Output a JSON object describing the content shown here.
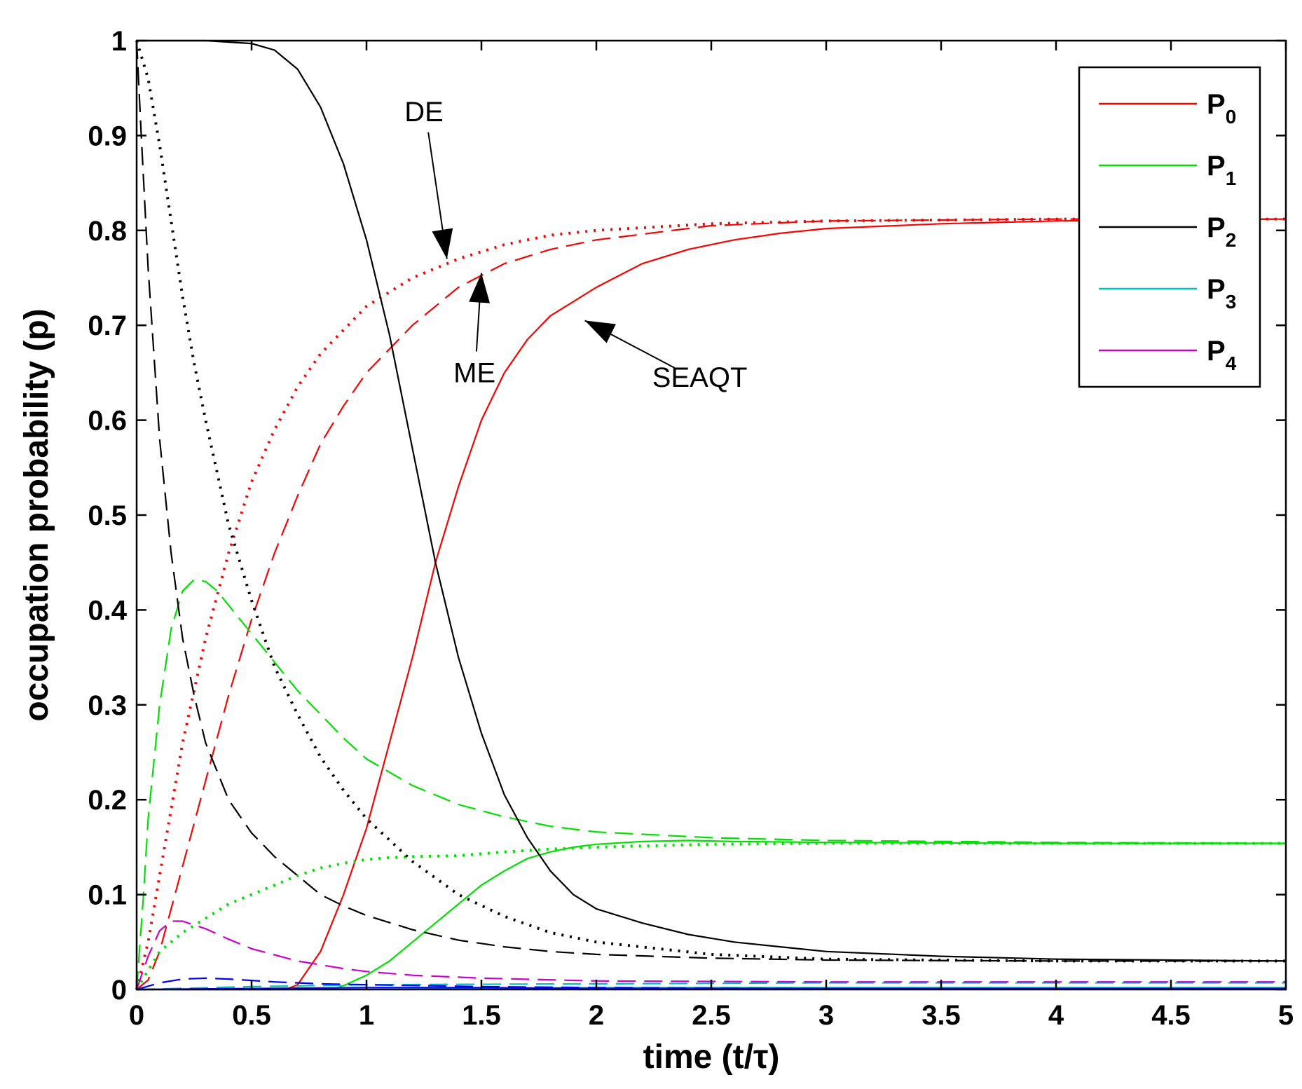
{
  "chart_data": {
    "type": "line",
    "xlabel": "time (t/τ)",
    "ylabel": "occupation probability (p)",
    "xlim": [
      0,
      5
    ],
    "ylim": [
      0,
      1
    ],
    "xticks": [
      0,
      0.5,
      1,
      1.5,
      2,
      2.5,
      3,
      3.5,
      4,
      4.5,
      5
    ],
    "xtick_labels": [
      "0",
      "0.5",
      "1",
      "1.5",
      "2",
      "2.5",
      "3",
      "3.5",
      "4",
      "4.5",
      "5"
    ],
    "yticks": [
      0,
      0.1,
      0.2,
      0.3,
      0.4,
      0.5,
      0.6,
      0.7,
      0.8,
      0.9,
      1
    ],
    "ytick_labels": [
      "0",
      "0.1",
      "0.2",
      "0.3",
      "0.4",
      "0.5",
      "0.6",
      "0.7",
      "0.8",
      "0.9",
      "1"
    ],
    "legend": {
      "placement": "top-right",
      "entries": [
        {
          "label": "P",
          "sub": "0",
          "color": "#ff0000"
        },
        {
          "label": "P",
          "sub": "1",
          "color": "#00e000"
        },
        {
          "label": "P",
          "sub": "2",
          "color": "#000000"
        },
        {
          "label": "P",
          "sub": "3",
          "color": "#00bfbf"
        },
        {
          "label": "P",
          "sub": "4",
          "color": "#cc00cc"
        }
      ]
    },
    "annotations": [
      {
        "text": "DE",
        "at": [
          1.25,
          0.915
        ],
        "arrow_to": [
          1.35,
          0.77
        ]
      },
      {
        "text": "ME",
        "at": [
          1.47,
          0.64
        ],
        "arrow_to": [
          1.5,
          0.755
        ]
      },
      {
        "text": "SEAQT",
        "at": [
          2.45,
          0.635
        ],
        "arrow_to": [
          1.95,
          0.705
        ]
      }
    ],
    "series": [
      {
        "name": "P0 SEAQT",
        "color": "#ff0000",
        "dash": "solid",
        "x": [
          0.0,
          0.5,
          0.65,
          0.7,
          0.8,
          0.9,
          1.0,
          1.1,
          1.2,
          1.3,
          1.4,
          1.5,
          1.6,
          1.7,
          1.8,
          1.9,
          2.0,
          2.2,
          2.4,
          2.6,
          2.8,
          3.0,
          3.5,
          4.0,
          5.0
        ],
        "y": [
          0.0,
          0.0,
          0.0,
          0.005,
          0.04,
          0.1,
          0.17,
          0.26,
          0.35,
          0.45,
          0.53,
          0.6,
          0.65,
          0.685,
          0.71,
          0.725,
          0.74,
          0.765,
          0.78,
          0.79,
          0.797,
          0.802,
          0.807,
          0.81,
          0.812
        ]
      },
      {
        "name": "P0 ME",
        "color": "#ff0000",
        "dash": "dash",
        "x": [
          0.0,
          0.05,
          0.1,
          0.2,
          0.3,
          0.4,
          0.5,
          0.6,
          0.7,
          0.8,
          0.9,
          1.0,
          1.2,
          1.4,
          1.6,
          1.8,
          2.0,
          2.5,
          3.0,
          4.0,
          5.0
        ],
        "y": [
          0.0,
          0.01,
          0.04,
          0.13,
          0.22,
          0.31,
          0.39,
          0.46,
          0.52,
          0.575,
          0.615,
          0.65,
          0.7,
          0.74,
          0.765,
          0.78,
          0.79,
          0.805,
          0.81,
          0.812,
          0.812
        ]
      },
      {
        "name": "P0 DE",
        "color": "#ff0000",
        "dash": "dot",
        "x": [
          0.0,
          0.05,
          0.1,
          0.15,
          0.2,
          0.3,
          0.4,
          0.5,
          0.6,
          0.7,
          0.8,
          1.0,
          1.2,
          1.4,
          1.6,
          1.8,
          2.0,
          2.5,
          3.0,
          4.0,
          5.0
        ],
        "y": [
          0.0,
          0.05,
          0.12,
          0.19,
          0.26,
          0.37,
          0.46,
          0.535,
          0.59,
          0.635,
          0.67,
          0.72,
          0.75,
          0.77,
          0.785,
          0.795,
          0.8,
          0.807,
          0.81,
          0.812,
          0.812
        ]
      },
      {
        "name": "P1 SEAQT",
        "color": "#00e000",
        "dash": "solid",
        "x": [
          0.0,
          0.85,
          0.9,
          1.0,
          1.1,
          1.2,
          1.3,
          1.4,
          1.5,
          1.6,
          1.7,
          1.8,
          1.9,
          2.0,
          2.2,
          2.4,
          2.6,
          3.0,
          4.0,
          5.0
        ],
        "y": [
          0.0,
          0.0,
          0.004,
          0.015,
          0.03,
          0.05,
          0.07,
          0.09,
          0.11,
          0.125,
          0.138,
          0.145,
          0.15,
          0.153,
          0.156,
          0.157,
          0.156,
          0.155,
          0.154,
          0.154
        ]
      },
      {
        "name": "P1 ME",
        "color": "#00e000",
        "dash": "dash",
        "x": [
          0.0,
          0.03,
          0.05,
          0.1,
          0.15,
          0.2,
          0.25,
          0.3,
          0.35,
          0.4,
          0.5,
          0.6,
          0.7,
          0.8,
          0.9,
          1.0,
          1.2,
          1.4,
          1.6,
          1.8,
          2.0,
          2.5,
          3.0,
          4.0,
          5.0
        ],
        "y": [
          0.0,
          0.1,
          0.18,
          0.3,
          0.38,
          0.42,
          0.432,
          0.43,
          0.42,
          0.405,
          0.375,
          0.345,
          0.315,
          0.29,
          0.265,
          0.243,
          0.215,
          0.195,
          0.182,
          0.172,
          0.166,
          0.16,
          0.157,
          0.155,
          0.154
        ]
      },
      {
        "name": "P1 DE",
        "color": "#00e000",
        "dash": "dot",
        "x": [
          0.0,
          0.05,
          0.1,
          0.2,
          0.3,
          0.4,
          0.5,
          0.6,
          0.7,
          0.8,
          0.9,
          1.0,
          1.1,
          1.2,
          1.4,
          1.6,
          1.8,
          2.0,
          2.5,
          3.0,
          4.0,
          5.0
        ],
        "y": [
          0.0,
          0.02,
          0.04,
          0.06,
          0.075,
          0.09,
          0.1,
          0.11,
          0.12,
          0.128,
          0.133,
          0.137,
          0.139,
          0.14,
          0.141,
          0.145,
          0.148,
          0.15,
          0.153,
          0.154,
          0.154,
          0.154
        ]
      },
      {
        "name": "P2 SEAQT",
        "color": "#000000",
        "dash": "solid",
        "x": [
          0.0,
          0.3,
          0.5,
          0.6,
          0.7,
          0.8,
          0.9,
          1.0,
          1.1,
          1.2,
          1.3,
          1.4,
          1.5,
          1.6,
          1.7,
          1.8,
          1.9,
          2.0,
          2.2,
          2.4,
          2.6,
          2.8,
          3.0,
          3.5,
          4.0,
          5.0
        ],
        "y": [
          1.0,
          1.0,
          0.997,
          0.99,
          0.97,
          0.93,
          0.87,
          0.79,
          0.69,
          0.57,
          0.45,
          0.35,
          0.27,
          0.205,
          0.16,
          0.125,
          0.1,
          0.085,
          0.07,
          0.058,
          0.05,
          0.045,
          0.04,
          0.035,
          0.032,
          0.03
        ]
      },
      {
        "name": "P2 ME",
        "color": "#000000",
        "dash": "dash",
        "x": [
          0.0,
          0.02,
          0.05,
          0.1,
          0.15,
          0.2,
          0.25,
          0.3,
          0.4,
          0.5,
          0.6,
          0.7,
          0.8,
          0.9,
          1.0,
          1.2,
          1.4,
          1.6,
          1.8,
          2.0,
          2.5,
          3.0,
          4.0,
          5.0
        ],
        "y": [
          1.0,
          0.9,
          0.76,
          0.58,
          0.46,
          0.37,
          0.31,
          0.26,
          0.2,
          0.165,
          0.14,
          0.12,
          0.1,
          0.088,
          0.078,
          0.063,
          0.052,
          0.045,
          0.04,
          0.037,
          0.033,
          0.031,
          0.03,
          0.03
        ]
      },
      {
        "name": "P2 DE",
        "color": "#000000",
        "dash": "dot",
        "x": [
          0.0,
          0.05,
          0.1,
          0.15,
          0.2,
          0.25,
          0.3,
          0.4,
          0.5,
          0.6,
          0.7,
          0.8,
          0.9,
          1.0,
          1.2,
          1.4,
          1.6,
          1.8,
          2.0,
          2.5,
          3.0,
          4.0,
          5.0
        ],
        "y": [
          1.0,
          0.96,
          0.89,
          0.81,
          0.73,
          0.66,
          0.6,
          0.49,
          0.41,
          0.34,
          0.29,
          0.245,
          0.21,
          0.18,
          0.135,
          0.1,
          0.077,
          0.06,
          0.05,
          0.037,
          0.032,
          0.03,
          0.03
        ]
      },
      {
        "name": "P3 ME",
        "color": "#00bfbf",
        "dash": "dash",
        "x": [
          0.0,
          0.5,
          1.0,
          2.0,
          3.0,
          4.0,
          5.0
        ],
        "y": [
          0.0,
          0.003,
          0.005,
          0.006,
          0.007,
          0.007,
          0.007
        ]
      },
      {
        "name": "P3 SEAQT",
        "color": "#00bfbf",
        "dash": "solid",
        "x": [
          0.0,
          1.0,
          1.5,
          2.0,
          3.0,
          5.0
        ],
        "y": [
          0.0,
          0.0,
          0.001,
          0.002,
          0.002,
          0.002
        ]
      },
      {
        "name": "P4 ME",
        "color": "#cc00cc",
        "dash": "dash",
        "x": [
          0.0,
          0.05,
          0.1,
          0.15,
          0.2,
          0.3,
          0.4,
          0.5,
          0.7,
          0.9,
          1.0,
          1.2,
          1.5,
          2.0,
          3.0,
          5.0
        ],
        "y": [
          0.0,
          0.035,
          0.062,
          0.072,
          0.072,
          0.064,
          0.053,
          0.043,
          0.03,
          0.022,
          0.019,
          0.015,
          0.012,
          0.009,
          0.008,
          0.008
        ]
      },
      {
        "name": "Blue ME",
        "color": "#0000ff",
        "dash": "dash",
        "x": [
          0.0,
          0.1,
          0.2,
          0.3,
          0.4,
          0.6,
          0.8,
          1.0,
          1.5,
          2.0,
          3.0,
          5.0
        ],
        "y": [
          0.0,
          0.007,
          0.011,
          0.012,
          0.011,
          0.008,
          0.006,
          0.005,
          0.003,
          0.002,
          0.001,
          0.001
        ]
      },
      {
        "name": "Blue SEAQT",
        "color": "#0000ff",
        "dash": "solid",
        "x": [
          0.0,
          1.0,
          1.5,
          2.0,
          5.0
        ],
        "y": [
          0.0,
          0.002,
          0.002,
          0.001,
          0.001
        ]
      }
    ]
  }
}
